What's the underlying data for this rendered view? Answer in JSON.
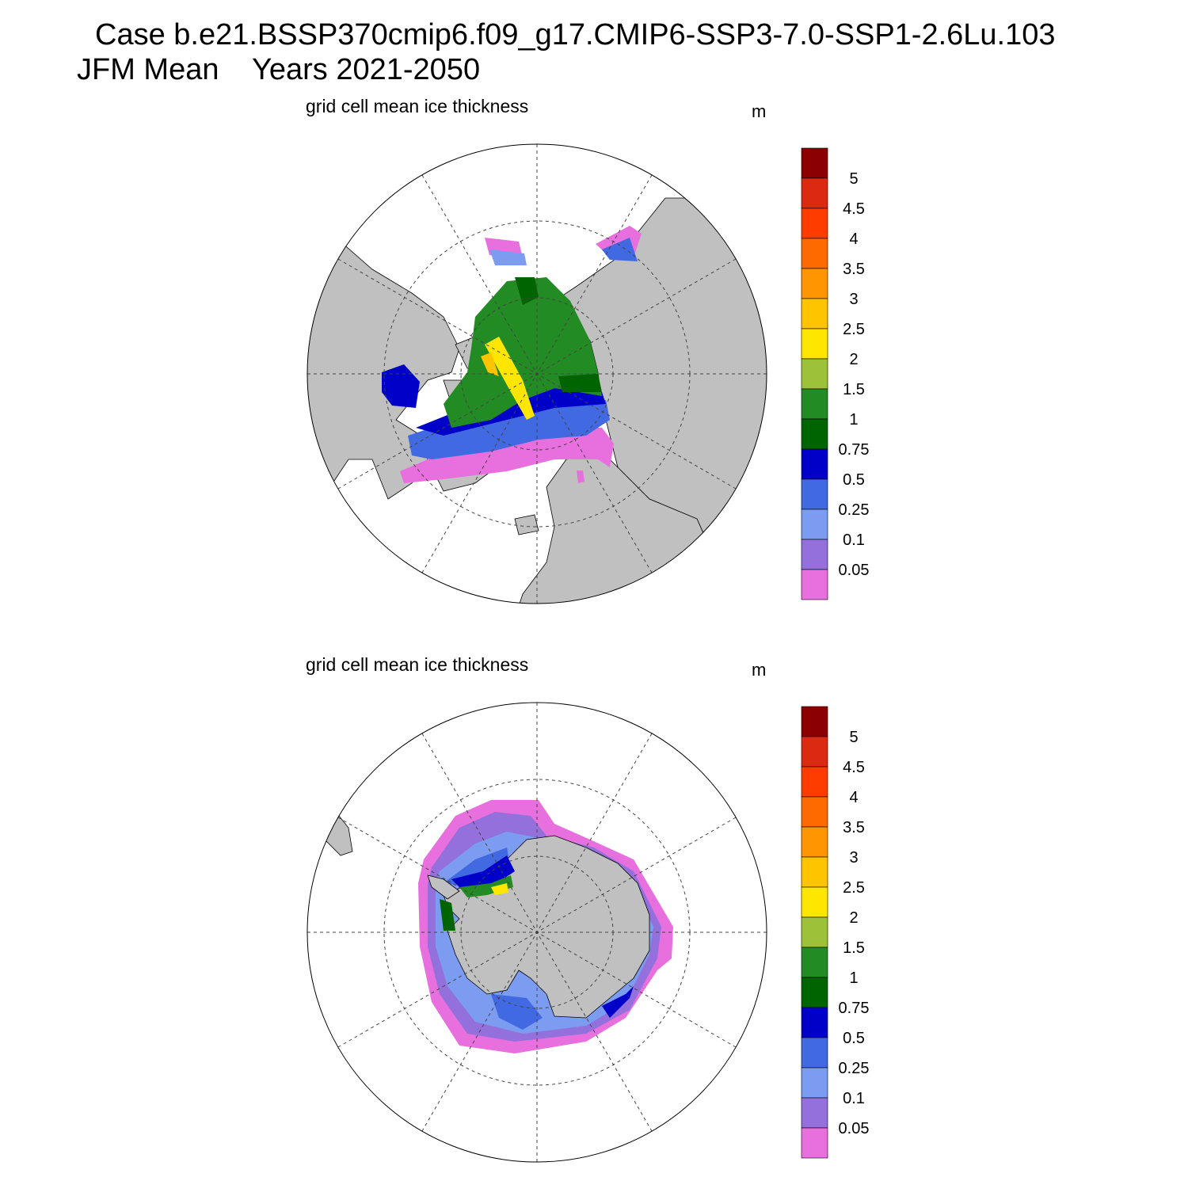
{
  "title": {
    "line1": "Case b.e21.BSSP370cmip6.f09_g17.CMIP6-SSP3-7.0-SSP1-2.6Lu.103",
    "line2": "JFM Mean    Years 2021-2050"
  },
  "panels": [
    {
      "id": "north",
      "hemisphere": "Northern Hemisphere",
      "title": "grid cell mean ice thickness",
      "units": "m"
    },
    {
      "id": "south",
      "hemisphere": "Southern Hemisphere",
      "title": "grid cell mean ice thickness",
      "units": "m"
    }
  ],
  "colorbar": {
    "labels": [
      "5",
      "4.5",
      "4",
      "3.5",
      "3",
      "2.5",
      "2",
      "1.5",
      "1",
      "0.75",
      "0.5",
      "0.25",
      "0.1",
      "0.05"
    ],
    "colors": [
      "#8b0000",
      "#dc2a12",
      "#ff3c00",
      "#ff6a00",
      "#ff9500",
      "#ffc400",
      "#ffe600",
      "#9dc23a",
      "#238b23",
      "#006400",
      "#0000c8",
      "#4169e1",
      "#7b9cf0",
      "#9370db",
      "#e770de"
    ]
  },
  "colors": {
    "land": "#c0c0c0",
    "ocean": "#ffffff",
    "outline": "#000000"
  }
}
